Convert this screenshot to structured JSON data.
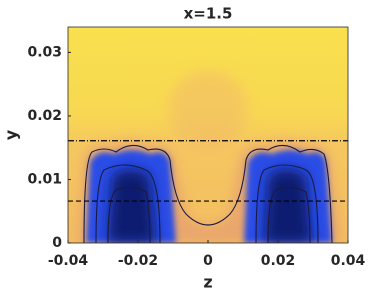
{
  "chart_data": {
    "type": "heatmap",
    "title": "x=1.5",
    "xlabel": "z",
    "ylabel": "y",
    "xlim": [
      -0.04,
      0.04
    ],
    "ylim": [
      0,
      0.034
    ],
    "xticks": [
      -0.04,
      -0.02,
      0,
      0.02,
      0.04
    ],
    "yticks": [
      0,
      0.01,
      0.02,
      0.03
    ],
    "hlines": [
      {
        "y": 0.0161,
        "style": "dashdot",
        "color": "#000000"
      },
      {
        "y": 0.0066,
        "style": "dashed",
        "color": "#000000"
      }
    ]
  }
}
